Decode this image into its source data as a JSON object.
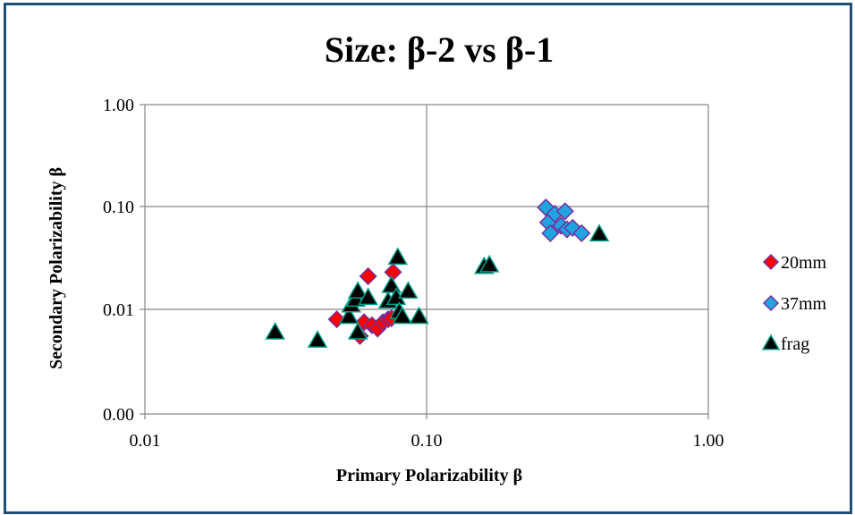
{
  "chart_data": {
    "type": "scatter",
    "title": "Size:  β-2 vs β-1",
    "xlabel": "Primary Polarizability β",
    "ylabel": "Secondary Polarizability β",
    "x_scale": "log",
    "y_scale": "log",
    "xlim": [
      0.01,
      1.0
    ],
    "y_ticks": [
      "0.00",
      "0.01",
      "0.10",
      "1.00"
    ],
    "x_ticks": [
      "0.01",
      "0.10",
      "1.00"
    ],
    "grid": true,
    "legend_position": "right",
    "series": [
      {
        "name": "20mm",
        "marker": "diamond",
        "color": "#ff0000",
        "edge": "#7030a0",
        "points": [
          [
            0.048,
            0.008
          ],
          [
            0.058,
            0.0055
          ],
          [
            0.06,
            0.0075
          ],
          [
            0.062,
            0.021
          ],
          [
            0.064,
            0.007
          ],
          [
            0.067,
            0.0065
          ],
          [
            0.07,
            0.0075
          ],
          [
            0.073,
            0.008
          ],
          [
            0.075,
            0.0082
          ],
          [
            0.076,
            0.023
          ]
        ]
      },
      {
        "name": "37mm",
        "marker": "diamond",
        "color": "#1fa4e0",
        "edge": "#7030a0",
        "points": [
          [
            0.265,
            0.098
          ],
          [
            0.27,
            0.07
          ],
          [
            0.275,
            0.055
          ],
          [
            0.285,
            0.085
          ],
          [
            0.3,
            0.065
          ],
          [
            0.31,
            0.09
          ],
          [
            0.315,
            0.06
          ],
          [
            0.33,
            0.062
          ],
          [
            0.355,
            0.055
          ]
        ]
      },
      {
        "name": "frag",
        "marker": "triangle",
        "color": "#000000",
        "edge": "#00a08a",
        "points": [
          [
            0.029,
            0.006
          ],
          [
            0.041,
            0.005
          ],
          [
            0.053,
            0.0085
          ],
          [
            0.054,
            0.011
          ],
          [
            0.056,
            0.0125
          ],
          [
            0.057,
            0.015
          ],
          [
            0.057,
            0.006
          ],
          [
            0.062,
            0.013
          ],
          [
            0.073,
            0.012
          ],
          [
            0.075,
            0.017
          ],
          [
            0.078,
            0.013
          ],
          [
            0.079,
            0.032
          ],
          [
            0.08,
            0.0095
          ],
          [
            0.082,
            0.0085
          ],
          [
            0.086,
            0.015
          ],
          [
            0.094,
            0.0085
          ],
          [
            0.16,
            0.026
          ],
          [
            0.167,
            0.027
          ],
          [
            0.41,
            0.054
          ]
        ]
      }
    ]
  }
}
